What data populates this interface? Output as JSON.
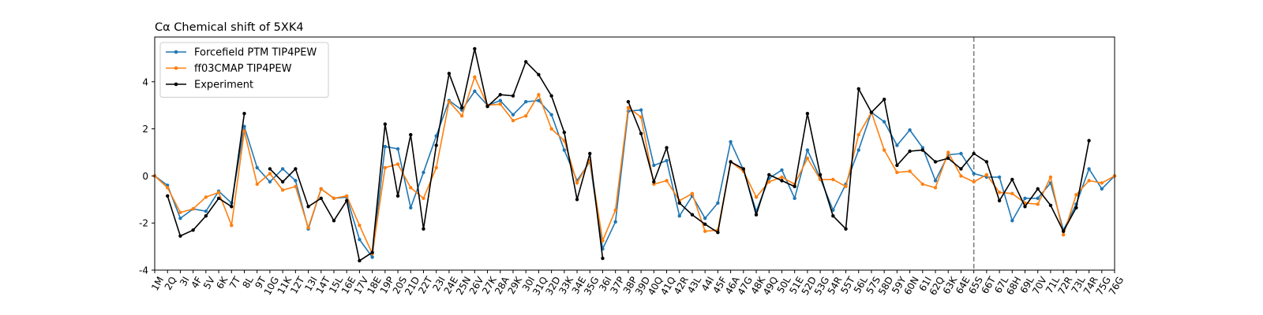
{
  "chart_data": {
    "type": "line",
    "title": "Cα Chemical shift of 5XK4",
    "xlabel": "",
    "ylabel": "",
    "ylim": [
      -4,
      5.9
    ],
    "yticks": [
      -4,
      -2,
      0,
      2,
      4
    ],
    "grid": false,
    "legend_position": "upper-left",
    "vertical_reference_line": {
      "at_category": "65S",
      "style": "dashed",
      "color": "#808080"
    },
    "categories": [
      "1M",
      "2Q",
      "3I",
      "4F",
      "5V",
      "6K",
      "7T",
      "8L",
      "9T",
      "10G",
      "11K",
      "12T",
      "13I",
      "14T",
      "15L",
      "16E",
      "17V",
      "18E",
      "19P",
      "20S",
      "21D",
      "22T",
      "23I",
      "24E",
      "25N",
      "26V",
      "27K",
      "28A",
      "29K",
      "30I",
      "31Q",
      "32D",
      "33K",
      "34E",
      "35G",
      "36I",
      "37P",
      "38P",
      "39D",
      "40Q",
      "41Q",
      "42R",
      "43L",
      "44I",
      "45F",
      "46A",
      "47G",
      "48K",
      "49Q",
      "50L",
      "51E",
      "52D",
      "53G",
      "54R",
      "55T",
      "56L",
      "57S",
      "58D",
      "59Y",
      "60N",
      "61I",
      "62Q",
      "63K",
      "64E",
      "65S",
      "66T",
      "67L",
      "68H",
      "69L",
      "70V",
      "71L",
      "72R",
      "73L",
      "74R",
      "75G",
      "76G"
    ],
    "series": [
      {
        "name": "Forcefield PTM TIP4PEW",
        "color": "#1f77b4",
        "values": [
          0.0,
          -0.4,
          -1.8,
          -1.4,
          -1.5,
          -0.65,
          -1.15,
          2.1,
          0.35,
          -0.25,
          0.3,
          -0.2,
          -2.25,
          -0.55,
          -0.95,
          -0.9,
          -2.7,
          -3.45,
          1.25,
          1.15,
          -1.35,
          0.15,
          1.7,
          3.2,
          2.8,
          3.6,
          3.0,
          3.2,
          2.6,
          3.15,
          3.2,
          2.6,
          1.1,
          -0.2,
          0.6,
          -3.1,
          -1.95,
          2.75,
          2.8,
          0.45,
          0.65,
          -1.7,
          -0.85,
          -1.8,
          -1.15,
          1.45,
          0.25,
          -1.5,
          -0.1,
          0.25,
          -0.95,
          1.1,
          -0.1,
          -1.45,
          -0.35,
          1.1,
          2.7,
          2.3,
          1.3,
          1.95,
          1.2,
          -0.2,
          0.9,
          0.95,
          0.1,
          -0.05,
          -0.05,
          -1.9,
          -0.95,
          -0.95,
          -0.3,
          -2.3,
          -1.2,
          0.3,
          -0.55,
          0.0
        ]
      },
      {
        "name": "ff03CMAP TIP4PEW",
        "color": "#ff7f0e",
        "values": [
          0.0,
          -0.5,
          -1.55,
          -1.4,
          -0.9,
          -0.7,
          -2.1,
          1.9,
          -0.35,
          0.1,
          -0.6,
          -0.45,
          -2.2,
          -0.55,
          -0.95,
          -0.85,
          -2.1,
          -3.3,
          0.35,
          0.5,
          -0.5,
          -0.95,
          0.35,
          3.15,
          2.55,
          4.2,
          3.0,
          3.05,
          2.35,
          2.55,
          3.45,
          2.0,
          1.5,
          -0.3,
          0.65,
          -2.75,
          -1.45,
          2.9,
          2.5,
          -0.35,
          -0.2,
          -1.05,
          -0.75,
          -2.35,
          -2.3,
          0.6,
          0.2,
          -0.9,
          -0.25,
          -0.05,
          -0.35,
          0.75,
          -0.15,
          -0.15,
          -0.45,
          1.75,
          2.7,
          1.1,
          0.15,
          0.2,
          -0.35,
          -0.5,
          1.0,
          0.0,
          -0.25,
          0.05,
          -0.7,
          -0.75,
          -1.15,
          -1.2,
          -0.05,
          -2.5,
          -0.8,
          -0.2,
          -0.3,
          0.0
        ]
      },
      {
        "name": "Experiment",
        "color": "#000000",
        "values": [
          null,
          -0.85,
          -2.55,
          -2.3,
          -1.7,
          -0.95,
          -1.3,
          2.65,
          null,
          0.3,
          -0.25,
          0.3,
          -1.3,
          -0.95,
          -1.9,
          -1.05,
          -3.6,
          -3.25,
          2.2,
          -0.85,
          1.75,
          -2.25,
          1.3,
          4.35,
          2.9,
          5.4,
          2.95,
          3.45,
          3.4,
          4.85,
          4.3,
          3.4,
          1.85,
          -1.0,
          0.95,
          -3.5,
          null,
          3.15,
          1.8,
          -0.25,
          1.2,
          -1.15,
          -1.65,
          -2.05,
          -2.4,
          0.6,
          0.3,
          -1.65,
          0.05,
          -0.2,
          -0.45,
          2.65,
          0.05,
          -1.7,
          -2.25,
          3.7,
          2.7,
          3.25,
          0.45,
          1.05,
          1.1,
          0.6,
          0.75,
          0.3,
          0.95,
          0.6,
          -1.05,
          -0.15,
          -1.3,
          -0.55,
          -1.25,
          -2.35,
          -1.35,
          1.5,
          null,
          null
        ]
      }
    ]
  }
}
